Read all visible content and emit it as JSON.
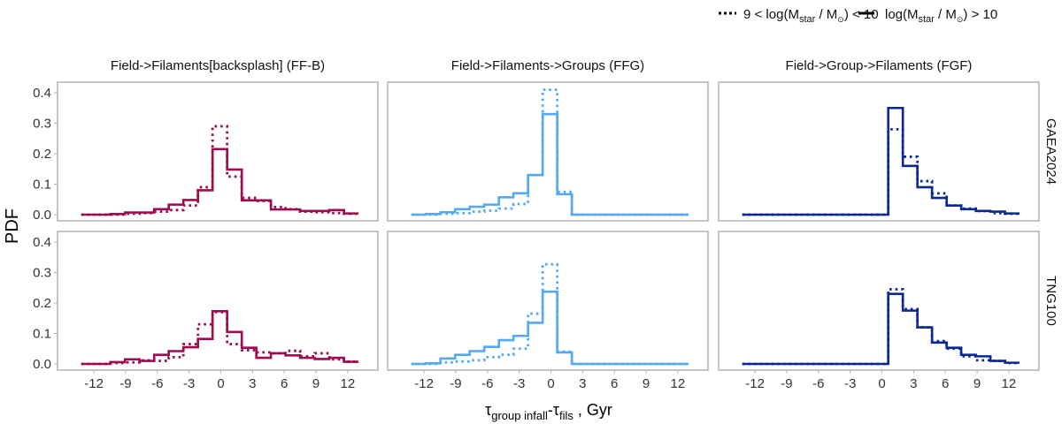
{
  "chart_data": {
    "type": "step-histogram",
    "ylabel": "PDF",
    "xlabel": {
      "main": "τ",
      "sub1": "group infall",
      "dash": "-τ",
      "sub2": "fils",
      "unit": " , Gyr"
    },
    "legend": {
      "placement": "top-right",
      "items": [
        {
          "style": "dotted",
          "p1": "9 < log(M",
          "sub": "star",
          "p2": " / M",
          "sun": "⊙",
          "p3": ") < 10"
        },
        {
          "style": "solid",
          "p1": "log(M",
          "sub": "star",
          "p2": " / M",
          "sun": "⊙",
          "p3": ") > 10"
        }
      ]
    },
    "xlim": [
      -14.5,
      15.5
    ],
    "ylim": [
      -0.015,
      0.43
    ],
    "xticks": [
      -12,
      -9,
      -6,
      -3,
      0,
      3,
      6,
      9,
      12
    ],
    "xtick_labels": [
      "-12",
      "-9",
      "-6",
      "-3",
      "0",
      "3",
      "6",
      "9",
      "12"
    ],
    "yticks": [
      0.0,
      0.1,
      0.2,
      0.3,
      0.4
    ],
    "ytick_labels": [
      "0.0",
      "0.1",
      "0.2",
      "0.3",
      "0.4"
    ],
    "grid": false,
    "bin_edges": [
      -13.2,
      -11.82,
      -10.44,
      -9.06,
      -7.68,
      -6.3,
      -4.92,
      -3.54,
      -2.16,
      -0.78,
      0.6,
      1.98,
      3.36,
      4.74,
      6.12,
      7.5,
      8.88,
      10.26,
      11.64,
      13.02
    ],
    "columns": [
      {
        "title": "Field->Filaments[backsplash] (FF-B)",
        "color": "#9E0B4E"
      },
      {
        "title": "Field->Filaments->Groups (FFG)",
        "color": "#55A8F5"
      },
      {
        "title": "Field->Group->Filaments (FGF)",
        "color": "#0A2896"
      }
    ],
    "rows": [
      "GAEA2024",
      "TNG100"
    ],
    "panels": [
      {
        "column": 0,
        "row": 0,
        "solid": [
          0,
          0,
          0.002,
          0.007,
          0.007,
          0.018,
          0.033,
          0.048,
          0.08,
          0.215,
          0.148,
          0.047,
          0.047,
          0.017,
          0.017,
          0.012,
          0.012,
          0.015,
          0.004
        ],
        "dotted": [
          0,
          0,
          0,
          0.003,
          0.005,
          0.01,
          0.015,
          0.03,
          0.09,
          0.29,
          0.125,
          0.055,
          0.045,
          0.025,
          0.018,
          0.01,
          0.008,
          0.005,
          0.003
        ]
      },
      {
        "column": 1,
        "row": 0,
        "solid": [
          0,
          0.002,
          0.008,
          0.018,
          0.026,
          0.033,
          0.057,
          0.07,
          0.13,
          0.33,
          0.067,
          0,
          0,
          0,
          0,
          0,
          0,
          0,
          0
        ],
        "dotted": [
          0,
          0,
          0.003,
          0.005,
          0.01,
          0.013,
          0.02,
          0.035,
          0.13,
          0.41,
          0.075,
          0,
          0,
          0,
          0,
          0,
          0,
          0,
          0
        ]
      },
      {
        "column": 2,
        "row": 0,
        "solid": [
          0,
          0,
          0,
          0,
          0,
          0,
          0,
          0,
          0,
          0,
          0.35,
          0.16,
          0.09,
          0.055,
          0.03,
          0.018,
          0.012,
          0.01,
          0.004
        ],
        "dotted": [
          0,
          0,
          0,
          0,
          0,
          0,
          0,
          0,
          0,
          0,
          0.28,
          0.19,
          0.11,
          0.07,
          0.03,
          0.02,
          0.012,
          0.005,
          0.003
        ]
      },
      {
        "column": 0,
        "row": 1,
        "solid": [
          0,
          0,
          0.006,
          0.015,
          0.01,
          0.03,
          0.042,
          0.055,
          0.082,
          0.173,
          0.105,
          0.053,
          0.02,
          0.035,
          0.028,
          0.02,
          0.016,
          0.02,
          0.007
        ],
        "dotted": [
          0,
          0,
          0.003,
          0.005,
          0.012,
          0.01,
          0.022,
          0.065,
          0.13,
          0.17,
          0.065,
          0.045,
          0.038,
          0.035,
          0.043,
          0.025,
          0.035,
          0.015,
          0.008
        ]
      },
      {
        "column": 1,
        "row": 1,
        "solid": [
          0,
          0.002,
          0.018,
          0.03,
          0.042,
          0.056,
          0.078,
          0.092,
          0.135,
          0.237,
          0.038,
          0,
          0,
          0,
          0,
          0,
          0,
          0,
          0
        ],
        "dotted": [
          0,
          0,
          0.005,
          0.008,
          0.012,
          0.022,
          0.03,
          0.05,
          0.165,
          0.327,
          0.04,
          0,
          0,
          0,
          0,
          0,
          0,
          0,
          0
        ]
      },
      {
        "column": 2,
        "row": 1,
        "solid": [
          0,
          0,
          0,
          0,
          0,
          0,
          0,
          0,
          0,
          0,
          0.23,
          0.175,
          0.12,
          0.07,
          0.053,
          0.03,
          0.025,
          0.01,
          0.004
        ],
        "dotted": [
          0,
          0,
          0,
          0,
          0,
          0,
          0,
          0,
          0,
          0,
          0.245,
          0.18,
          0.12,
          0.075,
          0.05,
          0.025,
          0.012,
          0.01,
          0.003
        ]
      }
    ]
  }
}
